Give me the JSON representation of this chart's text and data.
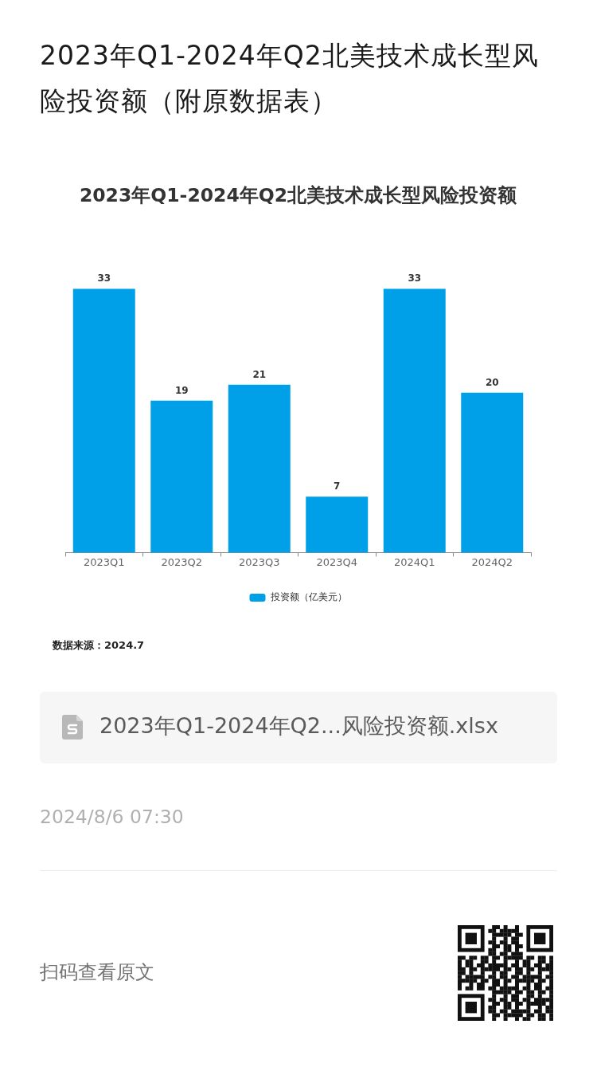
{
  "chart_data": {
    "type": "bar",
    "title": "2023年Q1-2024年Q2北美技术成长型风险投资额（附原数据表）",
    "subtitle": "2023年Q1-2024年Q2北美技术成长型风险投资额",
    "categories": [
      "2023Q1",
      "2023Q2",
      "2023Q3",
      "2023Q4",
      "2024Q1",
      "2024Q2"
    ],
    "series": [
      {
        "name": "投资额（亿美元）",
        "color": "#00a0e9",
        "values": [
          33,
          19,
          21,
          7,
          33,
          20
        ]
      }
    ],
    "data_labels": true,
    "legend": "bottom",
    "tick_labels": "x",
    "annotations": [
      "数据来源：2024.7",
      "2023年Q1-2024年Q2...风险投资额.xlsx",
      "2024/8/6 07:30",
      "扫码查看原文"
    ]
  }
}
